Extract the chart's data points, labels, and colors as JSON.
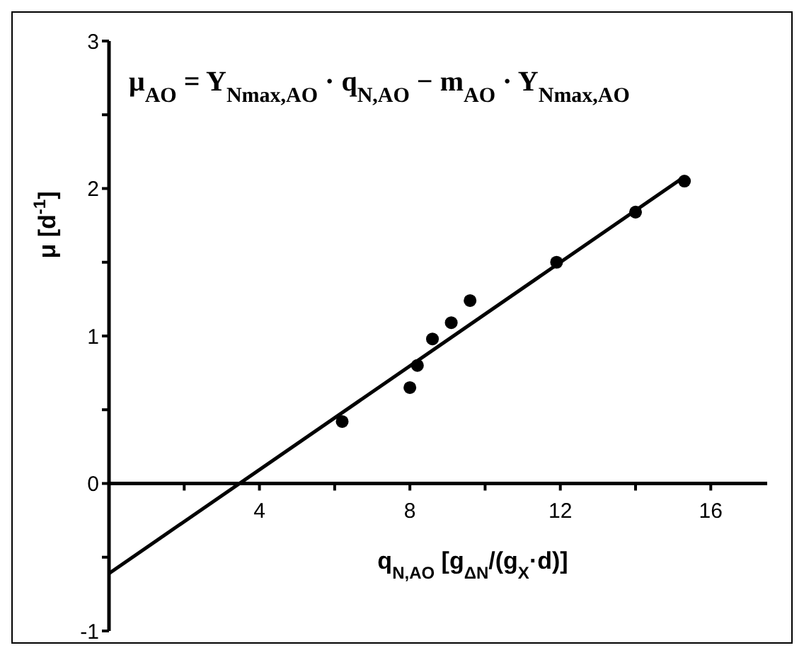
{
  "chart_data": {
    "type": "scatter",
    "annotations": [
      "μ$_{AO}$ = Y$_{Nmax,AO}$ · q$_{N,AO}$ − m$_{AO}$ · Y$_{Nmax,AO}$"
    ],
    "xlabel": "q$_{N,AO}$ [g$_{ΔN}$/(g$_{X}$·d)]",
    "ylabel": "μ [d$^{-1}$]",
    "x": [
      6.2,
      8.0,
      8.2,
      8.6,
      9.1,
      9.6,
      11.9,
      14.0,
      15.3
    ],
    "xlim": [
      0,
      17.5
    ],
    "ylim": [
      -1,
      3
    ],
    "xticks": [
      {
        "value": 2,
        "label": null
      },
      4,
      {
        "value": 6,
        "label": null
      },
      8,
      {
        "value": 10,
        "label": null
      },
      12,
      {
        "value": 14,
        "label": null
      },
      16
    ],
    "yticks": [
      -1,
      {
        "value": -0.5,
        "label": null
      },
      0,
      {
        "value": 0.5,
        "label": null
      },
      1,
      {
        "value": 1.5,
        "label": null
      },
      2,
      {
        "value": 2.5,
        "label": null
      },
      3
    ],
    "grid": false,
    "series": [
      {
        "type": "scatter",
        "color": "#000000",
        "marker": "circle",
        "values": [
          0.42,
          0.65,
          0.8,
          0.98,
          1.09,
          1.24,
          1.5,
          1.84,
          2.05
        ]
      },
      {
        "type": "line",
        "color": "#000000",
        "marker": "none",
        "x": [
          0,
          15.3
        ],
        "values": [
          -0.61,
          2.08
        ]
      }
    ]
  }
}
